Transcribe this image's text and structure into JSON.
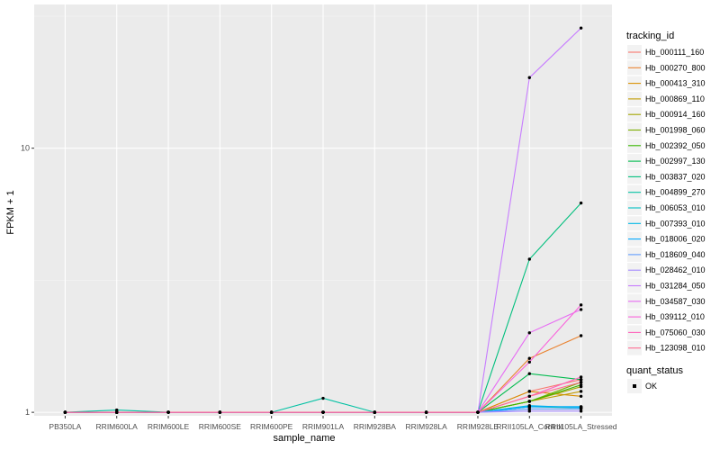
{
  "chart_data": {
    "type": "line",
    "title": "",
    "xlabel": "sample_name",
    "ylabel": "FPKM + 1",
    "y_scale": "log10",
    "ylim": [
      0.97,
      35
    ],
    "y_ticks": [
      1,
      10
    ],
    "grid": true,
    "legend_position": "right",
    "categories": [
      "PB350LA",
      "RRIM600LA",
      "RRIM600LE",
      "RRIM600SE",
      "RRIM600PE",
      "RRIM901LA",
      "RRIM928BA",
      "RRIM928LA",
      "RRIM928LE",
      "RRII105LA_Control",
      "RRII105LA_Stressed"
    ],
    "legend_title": "tracking_id",
    "series": [
      {
        "name": "Hb_000111_160",
        "color": "#F8766D",
        "values": [
          1,
          1,
          1,
          1,
          1,
          1,
          1,
          1,
          1,
          1.2,
          1.33
        ]
      },
      {
        "name": "Hb_000270_800",
        "color": "#EA8331",
        "values": [
          1,
          1,
          1,
          1,
          1,
          1,
          1,
          1,
          1,
          1.6,
          1.95
        ]
      },
      {
        "name": "Hb_000413_310",
        "color": "#D89000",
        "values": [
          1,
          1,
          1,
          1,
          1,
          1,
          1,
          1,
          1,
          1.2,
          1.15
        ]
      },
      {
        "name": "Hb_000869_110",
        "color": "#C09B00",
        "values": [
          1,
          1,
          1,
          1,
          1,
          1,
          1,
          1,
          1,
          1.1,
          1.2
        ]
      },
      {
        "name": "Hb_000914_160",
        "color": "#A3A500",
        "values": [
          1,
          1,
          1,
          1,
          1,
          1,
          1,
          1,
          1,
          1.1,
          1.25
        ]
      },
      {
        "name": "Hb_001998_060",
        "color": "#7CAE00",
        "values": [
          1,
          1,
          1,
          1,
          1,
          1,
          1,
          1,
          1,
          1.1,
          1.3
        ]
      },
      {
        "name": "Hb_002392_050",
        "color": "#39B600",
        "values": [
          1,
          1,
          1,
          1,
          1,
          1,
          1,
          1,
          1,
          1.1,
          1.27
        ]
      },
      {
        "name": "Hb_002997_130",
        "color": "#00BB4E",
        "values": [
          1,
          1,
          1,
          1,
          1,
          1,
          1,
          1,
          1,
          1.4,
          1.33
        ]
      },
      {
        "name": "Hb_003837_020",
        "color": "#00BF7D",
        "values": [
          1,
          1,
          1,
          1,
          1,
          1,
          1,
          1,
          1,
          3.8,
          6.2
        ]
      },
      {
        "name": "Hb_004899_270",
        "color": "#00C1A3",
        "values": [
          1,
          1.02,
          1,
          1,
          1,
          1.13,
          1,
          1,
          1,
          1.05,
          1.04
        ]
      },
      {
        "name": "Hb_006053_010",
        "color": "#00BFC4",
        "values": [
          1,
          1,
          1,
          1,
          1,
          1,
          1,
          1,
          1,
          1.05,
          1.05
        ]
      },
      {
        "name": "Hb_007393_010",
        "color": "#00B8E7",
        "values": [
          1,
          1,
          1,
          1,
          1,
          1,
          1,
          1,
          1,
          1.06,
          1.04
        ]
      },
      {
        "name": "Hb_018006_020",
        "color": "#00A9FF",
        "values": [
          1,
          1,
          1,
          1,
          1,
          1,
          1,
          1,
          1,
          1.05,
          1.05
        ]
      },
      {
        "name": "Hb_018609_040",
        "color": "#619CFF",
        "values": [
          1,
          1,
          1,
          1,
          1,
          1,
          1,
          1,
          1,
          1.03,
          1.03
        ]
      },
      {
        "name": "Hb_028462_010",
        "color": "#A58AFF",
        "values": [
          1,
          1,
          1,
          1,
          1,
          1,
          1,
          1,
          1,
          1.01,
          1.01
        ]
      },
      {
        "name": "Hb_031284_050",
        "color": "#C77CFF",
        "values": [
          1,
          1,
          1,
          1,
          1,
          1,
          1,
          1,
          1,
          18.5,
          28.5
        ]
      },
      {
        "name": "Hb_034587_030",
        "color": "#E76BF3",
        "values": [
          1,
          1,
          1,
          1,
          1,
          1,
          1,
          1,
          1,
          2.0,
          2.45
        ]
      },
      {
        "name": "Hb_039112_010",
        "color": "#FA62DB",
        "values": [
          1,
          1,
          1,
          1,
          1,
          1,
          1,
          1,
          1,
          1.55,
          2.55
        ]
      },
      {
        "name": "Hb_075060_030",
        "color": "#FF62BC",
        "values": [
          1,
          1,
          1,
          1,
          1,
          1,
          1,
          1,
          1,
          1.15,
          1.36
        ]
      },
      {
        "name": "Hb_123098_010",
        "color": "#FF6C91",
        "values": [
          1,
          1,
          1,
          1,
          1,
          1,
          1,
          1,
          1,
          1.15,
          1.3
        ]
      }
    ],
    "point_legend": {
      "title": "quant_status",
      "items": [
        "OK"
      ]
    }
  }
}
